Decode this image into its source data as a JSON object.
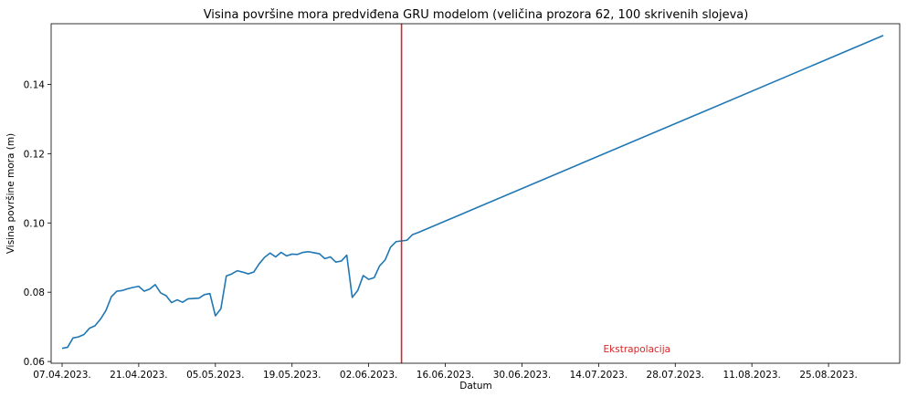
{
  "chart_data": {
    "type": "line",
    "title": "Visina površine mora predviđena GRU modelom (veličina prozora 62, 100 skrivenih slojeva)",
    "xlabel": "Datum",
    "ylabel": "Visina površine mora (m)",
    "x_axis": "date",
    "xlim": [
      "2023-04-05",
      "2023-09-07"
    ],
    "ylim": [
      0.0595,
      0.1575
    ],
    "x_tick_labels": [
      {
        "date": "2023-04-07",
        "label": "07.04.2023."
      },
      {
        "date": "2023-04-21",
        "label": "21.04.2023."
      },
      {
        "date": "2023-05-05",
        "label": "05.05.2023."
      },
      {
        "date": "2023-05-19",
        "label": "19.05.2023."
      },
      {
        "date": "2023-06-02",
        "label": "02.06.2023."
      },
      {
        "date": "2023-06-16",
        "label": "16.06.2023."
      },
      {
        "date": "2023-06-30",
        "label": "30.06.2023."
      },
      {
        "date": "2023-07-14",
        "label": "14.07.2023."
      },
      {
        "date": "2023-07-28",
        "label": "28.07.2023."
      },
      {
        "date": "2023-08-11",
        "label": "11.08.2023."
      },
      {
        "date": "2023-08-25",
        "label": "25.08.2023."
      }
    ],
    "y_ticks": [
      {
        "value": 0.06,
        "label": "0.06"
      },
      {
        "value": 0.08,
        "label": "0.08"
      },
      {
        "value": 0.1,
        "label": "0.10"
      },
      {
        "value": 0.12,
        "label": "0.12"
      },
      {
        "value": 0.14,
        "label": "0.14"
      }
    ],
    "series": [
      {
        "color": "#1f77b4",
        "points": [
          [
            "2023-04-07",
            0.0638
          ],
          [
            "2023-04-08",
            0.0641
          ],
          [
            "2023-04-09",
            0.0668
          ],
          [
            "2023-04-10",
            0.0671
          ],
          [
            "2023-04-11",
            0.0678
          ],
          [
            "2023-04-12",
            0.0696
          ],
          [
            "2023-04-13",
            0.0703
          ],
          [
            "2023-04-14",
            0.0722
          ],
          [
            "2023-04-15",
            0.0747
          ],
          [
            "2023-04-16",
            0.0787
          ],
          [
            "2023-04-17",
            0.0803
          ],
          [
            "2023-04-18",
            0.0805
          ],
          [
            "2023-04-19",
            0.081
          ],
          [
            "2023-04-20",
            0.0814
          ],
          [
            "2023-04-21",
            0.0817
          ],
          [
            "2023-04-22",
            0.0803
          ],
          [
            "2023-04-23",
            0.0809
          ],
          [
            "2023-04-24",
            0.0822
          ],
          [
            "2023-04-25",
            0.0798
          ],
          [
            "2023-04-26",
            0.079
          ],
          [
            "2023-04-27",
            0.077
          ],
          [
            "2023-04-28",
            0.0778
          ],
          [
            "2023-04-29",
            0.0771
          ],
          [
            "2023-04-30",
            0.0781
          ],
          [
            "2023-05-01",
            0.0782
          ],
          [
            "2023-05-02",
            0.0783
          ],
          [
            "2023-05-03",
            0.0793
          ],
          [
            "2023-05-04",
            0.0796
          ],
          [
            "2023-05-05",
            0.0732
          ],
          [
            "2023-05-06",
            0.0752
          ],
          [
            "2023-05-07",
            0.0847
          ],
          [
            "2023-05-08",
            0.0853
          ],
          [
            "2023-05-09",
            0.0862
          ],
          [
            "2023-05-10",
            0.0858
          ],
          [
            "2023-05-11",
            0.0853
          ],
          [
            "2023-05-12",
            0.0858
          ],
          [
            "2023-05-13",
            0.0882
          ],
          [
            "2023-05-14",
            0.0901
          ],
          [
            "2023-05-15",
            0.0913
          ],
          [
            "2023-05-16",
            0.0902
          ],
          [
            "2023-05-17",
            0.0915
          ],
          [
            "2023-05-18",
            0.0905
          ],
          [
            "2023-05-19",
            0.091
          ],
          [
            "2023-05-20",
            0.0909
          ],
          [
            "2023-05-21",
            0.0915
          ],
          [
            "2023-05-22",
            0.0917
          ],
          [
            "2023-05-23",
            0.0914
          ],
          [
            "2023-05-24",
            0.0911
          ],
          [
            "2023-05-25",
            0.0897
          ],
          [
            "2023-05-26",
            0.0902
          ],
          [
            "2023-05-27",
            0.0887
          ],
          [
            "2023-05-28",
            0.089
          ],
          [
            "2023-05-29",
            0.0907
          ],
          [
            "2023-05-30",
            0.0785
          ],
          [
            "2023-05-31",
            0.0805
          ],
          [
            "2023-06-01",
            0.0848
          ],
          [
            "2023-06-02",
            0.0837
          ],
          [
            "2023-06-03",
            0.0842
          ],
          [
            "2023-06-04",
            0.0876
          ],
          [
            "2023-06-05",
            0.0893
          ],
          [
            "2023-06-06",
            0.093
          ],
          [
            "2023-06-07",
            0.0946
          ],
          [
            "2023-06-08",
            0.0948
          ],
          [
            "2023-06-09",
            0.095
          ],
          [
            "2023-06-10",
            0.0966
          ],
          [
            "2023-06-11",
            0.0972
          ],
          [
            "2023-09-04",
            0.1541
          ]
        ]
      }
    ],
    "vertical_line": {
      "date": "2023-06-08",
      "color": "#d62728"
    },
    "annotation": {
      "text": "Ekstrapolacija",
      "date": "2023-07-21",
      "y": 0.0637,
      "color": "#d62728"
    }
  }
}
